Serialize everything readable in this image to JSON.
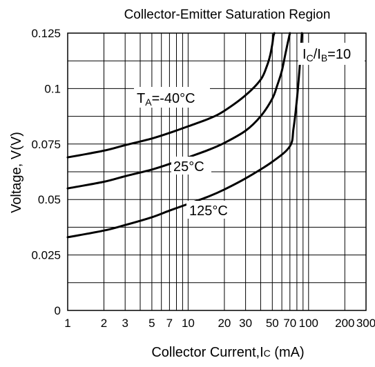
{
  "chart_data": {
    "type": "line",
    "title": "Collector-Emitter Saturation Region",
    "xlabel": "Collector Current,IC (mA)",
    "xlabel_parts": {
      "main": "Collector Current,I",
      "sub": "C",
      "unit": " (mA)"
    },
    "ylabel": "Voltage, V(V)",
    "x_scale": "log",
    "xlim": [
      1,
      300
    ],
    "ylim": [
      0,
      0.125
    ],
    "grid": true,
    "x_ticks": [
      1,
      2,
      3,
      5,
      7,
      10,
      20,
      30,
      50,
      70,
      100,
      200,
      300
    ],
    "x_tick_labels": [
      "1",
      "2",
      "3",
      "5",
      "7",
      "10",
      "20",
      "30",
      "50",
      "70",
      "100",
      "200",
      "300"
    ],
    "x_minor_grid": [
      4,
      6,
      8,
      9,
      40,
      60,
      80,
      90
    ],
    "y_ticks": [
      0,
      0.025,
      0.05,
      0.075,
      0.1,
      0.125
    ],
    "y_tick_labels": [
      "0",
      "0.025",
      "0.05",
      "0.075",
      "0.1",
      "0.125"
    ],
    "y_minor_grid": [
      0.0125,
      0.0375,
      0.0625,
      0.0875,
      0.1125
    ],
    "annotations": [
      {
        "id": "ratio",
        "text": "IC/IB=10",
        "parts": [
          "I",
          "C",
          "/I",
          "B",
          "=10"
        ]
      },
      {
        "id": "ta-label",
        "text": "TA=-40°C",
        "parts": [
          "T",
          "A",
          "=-40°C"
        ]
      }
    ],
    "series": [
      {
        "name": "-40°C",
        "label_text": "=-40°C",
        "x": [
          1,
          2,
          3,
          5,
          7,
          10,
          15,
          20,
          30,
          40,
          45,
          48,
          50,
          51,
          52
        ],
        "y": [
          0.069,
          0.072,
          0.0745,
          0.0775,
          0.08,
          0.083,
          0.0865,
          0.09,
          0.097,
          0.104,
          0.11,
          0.115,
          0.12,
          0.1235,
          0.125
        ]
      },
      {
        "name": "25°C",
        "label_text": "25°C",
        "x": [
          1,
          2,
          3,
          5,
          7,
          10,
          15,
          20,
          30,
          40,
          50,
          55,
          60,
          65,
          70
        ],
        "y": [
          0.055,
          0.058,
          0.0605,
          0.0635,
          0.066,
          0.069,
          0.0725,
          0.0755,
          0.081,
          0.0875,
          0.0955,
          0.1015,
          0.108,
          0.117,
          0.125
        ]
      },
      {
        "name": "125°C",
        "label_text": "125°C",
        "x": [
          1,
          2,
          3,
          5,
          7,
          10,
          15,
          20,
          30,
          50,
          70,
          75,
          80,
          85,
          88
        ],
        "y": [
          0.033,
          0.036,
          0.0385,
          0.042,
          0.045,
          0.048,
          0.0515,
          0.0545,
          0.0595,
          0.067,
          0.074,
          0.082,
          0.095,
          0.112,
          0.125
        ]
      }
    ]
  }
}
